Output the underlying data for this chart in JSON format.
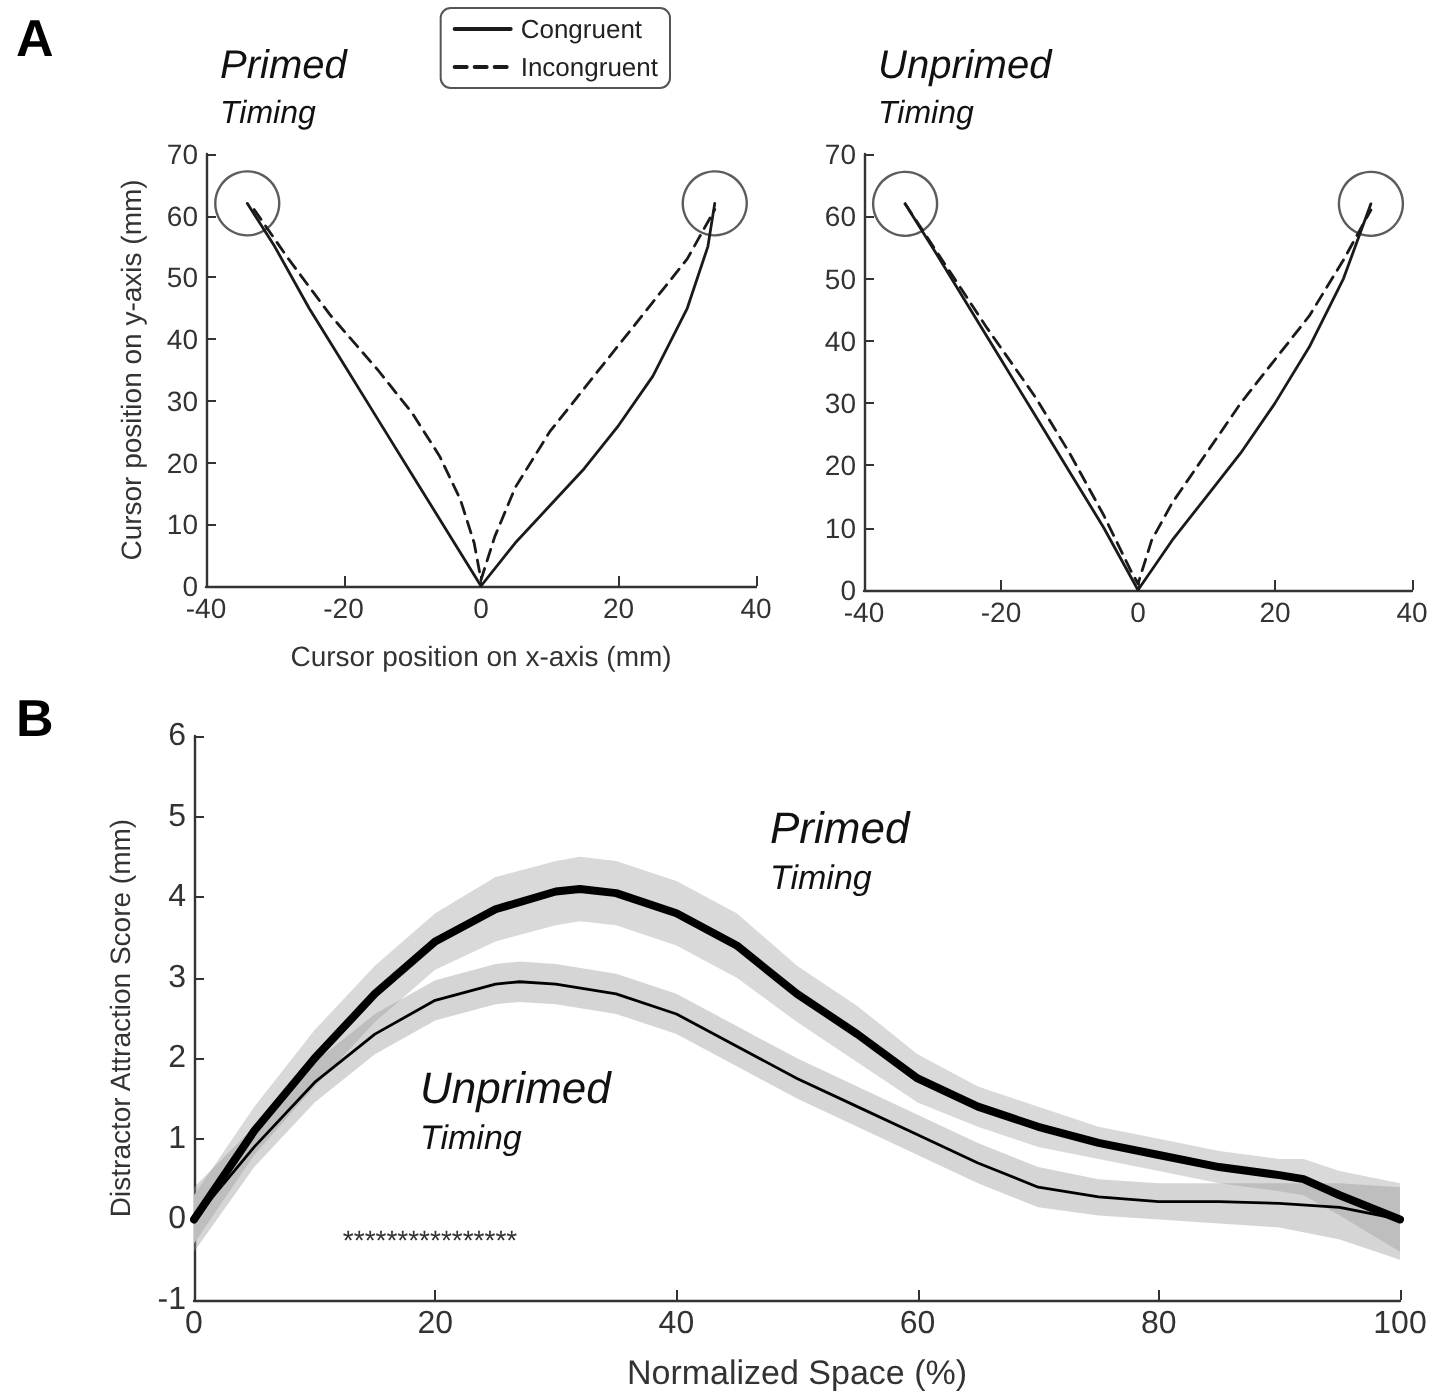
{
  "chart_data": [
    {
      "type": "line",
      "title": "Primed",
      "subtitle": "Timing",
      "xlabel": "Cursor position on x-axis (mm)",
      "ylabel": "Cursor position on y-axis (mm)",
      "annotations": [
        "A"
      ],
      "xlim": [
        -40,
        40
      ],
      "xticks": [
        -40,
        -20,
        0,
        20,
        40
      ],
      "ylim": [
        0,
        70
      ],
      "yticks": [
        0,
        10,
        20,
        30,
        40,
        50,
        60,
        70
      ],
      "grid": false,
      "legend": "top right",
      "marker": "none",
      "series": [
        {
          "name": "Congruent",
          "color": "#1a1a1a",
          "line_style": "solid",
          "x": [
            -34,
            -30,
            -25,
            -20,
            -15,
            -10,
            -5,
            0,
            5,
            10,
            15,
            20,
            25,
            30,
            33,
            34
          ],
          "values": [
            62,
            55,
            45,
            36,
            27,
            18,
            9,
            0,
            7,
            13,
            19,
            26,
            34,
            45,
            55,
            62
          ]
        },
        {
          "name": "Incongruent",
          "color": "#1a1a1a",
          "line_style": "dashed",
          "x": [
            -33,
            -28,
            -22,
            -15,
            -10,
            -6,
            -3,
            -1,
            0,
            2,
            5,
            10,
            15,
            20,
            25,
            30,
            34
          ],
          "values": [
            61,
            53,
            44,
            35,
            28,
            21,
            14,
            7,
            1,
            8,
            16,
            25,
            32,
            39,
            46,
            53,
            61
          ]
        },
        {
          "type": "scatter",
          "marker": "circle",
          "color": "#333333",
          "x": [
            -34,
            34
          ],
          "values": [
            62,
            62
          ]
        }
      ]
    },
    {
      "type": "line",
      "title": "Unprimed",
      "subtitle": "Timing",
      "xlim": [
        -40,
        40
      ],
      "xticks": [
        -40,
        -20,
        0,
        20,
        40
      ],
      "ylim": [
        0,
        70
      ],
      "yticks": [
        0,
        10,
        20,
        30,
        40,
        50,
        60,
        70
      ],
      "grid": false,
      "legend": false,
      "marker": "none",
      "series": [
        {
          "color": "#1a1a1a",
          "line_style": "solid",
          "x": [
            -34,
            -30,
            -25,
            -20,
            -15,
            -10,
            -5,
            0,
            5,
            10,
            15,
            20,
            25,
            30,
            34
          ],
          "values": [
            62,
            55,
            46,
            37,
            28,
            19,
            10,
            0,
            8,
            15,
            22,
            30,
            39,
            50,
            62
          ]
        },
        {
          "color": "#1a1a1a",
          "line_style": "dashed",
          "x": [
            -34,
            -28,
            -22,
            -15,
            -10,
            -5,
            -1,
            0,
            2,
            5,
            10,
            15,
            20,
            25,
            30,
            34
          ],
          "values": [
            62,
            52,
            42,
            31,
            22,
            12,
            3,
            1,
            8,
            14,
            22,
            30,
            37,
            44,
            53,
            61
          ]
        },
        {
          "type": "scatter",
          "marker": "circle",
          "color": "#333333",
          "x": [
            -34,
            34
          ],
          "values": [
            62,
            62
          ]
        }
      ]
    },
    {
      "type": "line",
      "xlabel": "Normalized Space (%)",
      "ylabel": "Distractor Attraction Score (mm)",
      "annotations": [
        "B",
        "Primed Timing",
        "Unprimed Timing",
        "****************"
      ],
      "xlim": [
        0,
        100
      ],
      "xticks": [
        0,
        20,
        40,
        60,
        80,
        100
      ],
      "ylim": [
        -1,
        6
      ],
      "yticks": [
        -1,
        0,
        1,
        2,
        3,
        4,
        5,
        6
      ],
      "grid": false,
      "legend": false,
      "marker": "none",
      "series": [
        {
          "color": "#000000",
          "line_style": "solid",
          "x": [
            0,
            5,
            10,
            15,
            20,
            25,
            30,
            32,
            35,
            40,
            45,
            50,
            55,
            60,
            65,
            70,
            75,
            80,
            85,
            90,
            92,
            95,
            100
          ],
          "values": [
            0,
            1.1,
            2.0,
            2.8,
            3.45,
            3.85,
            4.07,
            4.1,
            4.05,
            3.8,
            3.4,
            2.8,
            2.3,
            1.75,
            1.4,
            1.15,
            0.95,
            0.8,
            0.65,
            0.55,
            0.5,
            0.3,
            0
          ],
          "lower": [
            -0.3,
            0.8,
            1.65,
            2.45,
            3.1,
            3.45,
            3.65,
            3.7,
            3.65,
            3.4,
            3.0,
            2.45,
            1.95,
            1.45,
            1.15,
            0.9,
            0.75,
            0.6,
            0.45,
            0.35,
            0.3,
            0.05,
            -0.4
          ],
          "upper": [
            0.3,
            1.4,
            2.35,
            3.15,
            3.8,
            4.25,
            4.45,
            4.5,
            4.45,
            4.2,
            3.8,
            3.15,
            2.65,
            2.05,
            1.65,
            1.4,
            1.15,
            1.0,
            0.85,
            0.75,
            0.75,
            0.6,
            0.45
          ]
        },
        {
          "color": "#000000",
          "line_style": "solid",
          "x": [
            0,
            5,
            10,
            15,
            20,
            25,
            27,
            30,
            35,
            40,
            45,
            50,
            55,
            60,
            65,
            70,
            75,
            80,
            85,
            90,
            95,
            100
          ],
          "values": [
            0,
            0.9,
            1.7,
            2.3,
            2.72,
            2.92,
            2.95,
            2.92,
            2.8,
            2.55,
            2.15,
            1.75,
            1.4,
            1.05,
            0.7,
            0.4,
            0.28,
            0.22,
            0.22,
            0.2,
            0.15,
            0
          ],
          "lower": [
            -0.4,
            0.65,
            1.45,
            2.05,
            2.47,
            2.67,
            2.7,
            2.67,
            2.55,
            2.3,
            1.9,
            1.5,
            1.15,
            0.8,
            0.45,
            0.15,
            0.05,
            0.0,
            -0.05,
            -0.1,
            -0.25,
            -0.5
          ],
          "upper": [
            0.4,
            1.15,
            1.95,
            2.55,
            2.97,
            3.17,
            3.2,
            3.17,
            3.05,
            2.8,
            2.4,
            2.0,
            1.65,
            1.3,
            0.95,
            0.65,
            0.5,
            0.45,
            0.45,
            0.45,
            0.45,
            0.4
          ]
        }
      ]
    }
  ]
}
